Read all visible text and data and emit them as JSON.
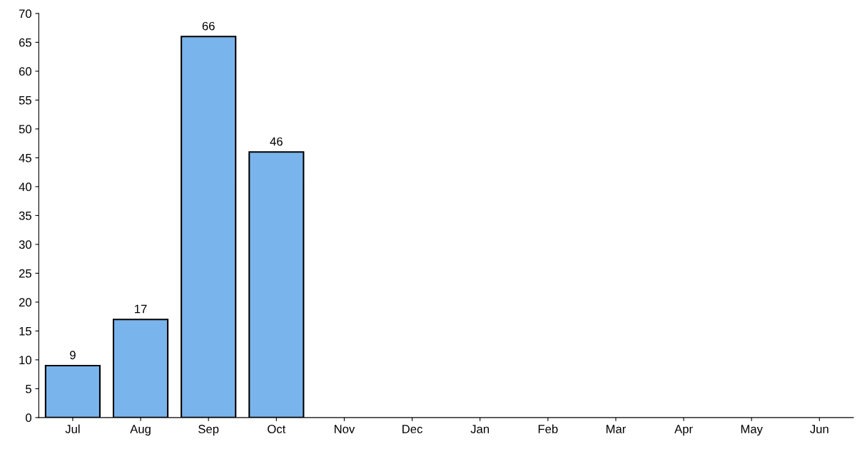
{
  "chart_data": {
    "type": "bar",
    "categories": [
      "Jul",
      "Aug",
      "Sep",
      "Oct",
      "Nov",
      "Dec",
      "Jan",
      "Feb",
      "Mar",
      "Apr",
      "May",
      "Jun"
    ],
    "values": [
      9,
      17,
      66,
      46,
      null,
      null,
      null,
      null,
      null,
      null,
      null,
      null
    ],
    "color": "#7ab4ec",
    "ylim": [
      0,
      70
    ],
    "yticks": [
      0,
      5,
      10,
      15,
      20,
      25,
      30,
      35,
      40,
      45,
      50,
      55,
      60,
      65,
      70
    ],
    "data_labels": true,
    "grid": false
  }
}
